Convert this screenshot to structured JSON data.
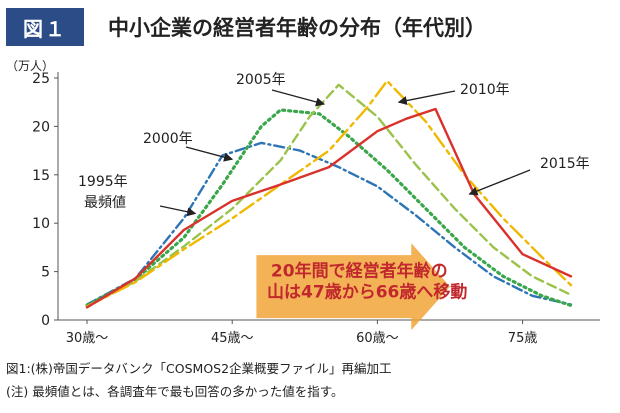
{
  "figure": {
    "badge": "図１",
    "title": "中小企業の経営者年齢の分布（年代別）",
    "source": "図1:(株)帝国データバンク「COSMOS2企業概要ファイル」再編加工",
    "note": "(注) 最頻値とは、各調査年で最も回答の多かった値を指す。"
  },
  "chart_data": {
    "type": "line",
    "title": "中小企業の経営者年齢の分布（年代別）",
    "ylabel": "（万人）",
    "xlabel": "",
    "x": [
      30,
      35,
      40,
      45,
      50,
      55,
      60,
      65,
      70,
      75,
      80
    ],
    "x_ticks": [
      30,
      45,
      60,
      75
    ],
    "x_tick_labels": [
      "30歳～",
      "45歳～",
      "60歳～",
      "75歳"
    ],
    "xlim": [
      27,
      83
    ],
    "ylim": [
      0,
      25
    ],
    "y_ticks": [
      0,
      5,
      10,
      15,
      20,
      25
    ],
    "grid": false,
    "annotations": {
      "mode_label_line1": "1995年",
      "mode_label_line2": "最頻値",
      "callout_line1": "20年間で経営者年齢の",
      "callout_line2": "山は47歳から66歳へ移動",
      "callout_color": "#f2a43a",
      "callout_text_color": "#c0282d"
    },
    "series": [
      {
        "name": "1995年",
        "color": "#2e75b6",
        "dash": "10 4 2 4",
        "points": [
          [
            30,
            1.6
          ],
          [
            35,
            4.3
          ],
          [
            40,
            10.5
          ],
          [
            44,
            17.0
          ],
          [
            48,
            18.3
          ],
          [
            52,
            17.5
          ],
          [
            56,
            15.8
          ],
          [
            60,
            13.8
          ],
          [
            64,
            10.8
          ],
          [
            68,
            7.5
          ],
          [
            72,
            4.5
          ],
          [
            76,
            2.5
          ],
          [
            80,
            1.6
          ]
        ]
      },
      {
        "name": "2000年",
        "color": "#3aa64a",
        "dash": "2 4",
        "points": [
          [
            30,
            1.5
          ],
          [
            35,
            4.2
          ],
          [
            40,
            8.5
          ],
          [
            44,
            14.0
          ],
          [
            48,
            20.0
          ],
          [
            50,
            21.7
          ],
          [
            54,
            21.3
          ],
          [
            57,
            19.0
          ],
          [
            61,
            15.5
          ],
          [
            65,
            11.5
          ],
          [
            69,
            7.5
          ],
          [
            73,
            4.5
          ],
          [
            77,
            2.5
          ],
          [
            80,
            1.5
          ]
        ]
      },
      {
        "name": "2005年",
        "color": "#9bc24a",
        "dash": "9 5",
        "points": [
          [
            30,
            1.4
          ],
          [
            35,
            4.0
          ],
          [
            40,
            7.6
          ],
          [
            45,
            11.5
          ],
          [
            50,
            16.5
          ],
          [
            53,
            21.0
          ],
          [
            56,
            24.3
          ],
          [
            60,
            21.0
          ],
          [
            64,
            16.0
          ],
          [
            68,
            11.5
          ],
          [
            72,
            7.5
          ],
          [
            76,
            4.5
          ],
          [
            80,
            2.6
          ]
        ]
      },
      {
        "name": "2010年",
        "color": "#f0b800",
        "dash": "16 5 4 5",
        "points": [
          [
            30,
            1.4
          ],
          [
            35,
            3.9
          ],
          [
            40,
            7.3
          ],
          [
            45,
            10.5
          ],
          [
            50,
            14.0
          ],
          [
            55,
            17.5
          ],
          [
            59,
            22.0
          ],
          [
            61,
            24.7
          ],
          [
            65,
            20.5
          ],
          [
            69,
            15.0
          ],
          [
            73,
            10.5
          ],
          [
            77,
            6.5
          ],
          [
            80,
            3.6
          ]
        ]
      },
      {
        "name": "2015年",
        "color": "#d9312b",
        "dash": "",
        "points": [
          [
            30,
            1.3
          ],
          [
            35,
            4.3
          ],
          [
            40,
            9.3
          ],
          [
            45,
            12.3
          ],
          [
            50,
            14.0
          ],
          [
            55,
            15.8
          ],
          [
            60,
            19.5
          ],
          [
            63,
            20.8
          ],
          [
            66,
            21.8
          ],
          [
            70,
            13.0
          ],
          [
            75,
            6.8
          ],
          [
            80,
            4.5
          ]
        ]
      }
    ]
  }
}
